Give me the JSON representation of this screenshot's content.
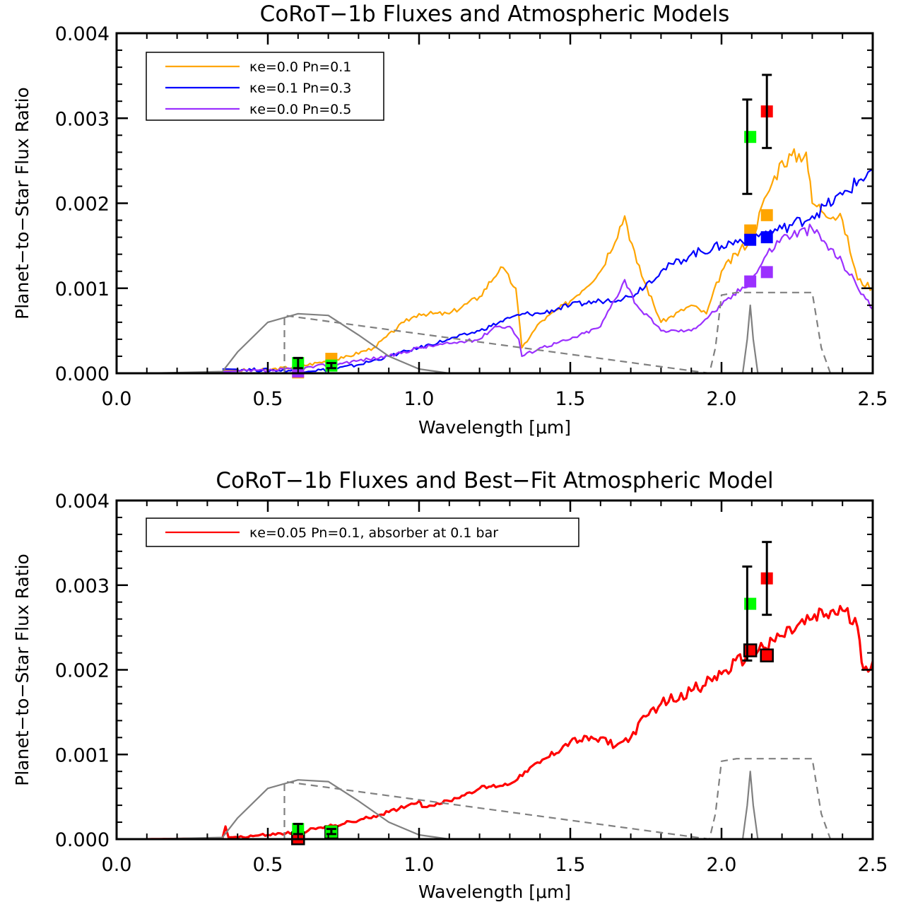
{
  "chart_data": [
    {
      "type": "line",
      "title": "CoRoT−1b Fluxes and Atmospheric Models",
      "xlabel": "Wavelength [μm]",
      "ylabel": "Planet−to−Star Flux Ratio",
      "xlim": [
        0.0,
        2.5
      ],
      "ylim": [
        0.0,
        0.004
      ],
      "x_tick_labels": [
        "0.0",
        "0.5",
        "1.0",
        "1.5",
        "2.0",
        "2.5"
      ],
      "y_tick_labels": [
        "0.000",
        "0.001",
        "0.002",
        "0.003",
        "0.004"
      ],
      "legend_position": "top-left",
      "series": [
        {
          "name": "κe=0.0 Pn=0.1",
          "color": "#FFA500",
          "points": [
            [
              0.35,
              3e-05
            ],
            [
              0.5,
              4e-05
            ],
            [
              0.6,
              8e-05
            ],
            [
              0.75,
              0.00018
            ],
            [
              0.85,
              0.0003
            ],
            [
              0.95,
              0.0006
            ],
            [
              1.0,
              0.0007
            ],
            [
              1.1,
              0.0007
            ],
            [
              1.2,
              0.0009
            ],
            [
              1.27,
              0.00125
            ],
            [
              1.32,
              0.001
            ],
            [
              1.34,
              0.0003
            ],
            [
              1.4,
              0.0006
            ],
            [
              1.5,
              0.00085
            ],
            [
              1.6,
              0.0012
            ],
            [
              1.68,
              0.00185
            ],
            [
              1.72,
              0.0013
            ],
            [
              1.8,
              0.0006
            ],
            [
              1.9,
              0.0008
            ],
            [
              1.95,
              0.0007
            ],
            [
              2.0,
              0.0012
            ],
            [
              2.1,
              0.0016
            ],
            [
              2.15,
              0.0021
            ],
            [
              2.2,
              0.0025
            ],
            [
              2.28,
              0.0026
            ],
            [
              2.3,
              0.002
            ],
            [
              2.4,
              0.0018
            ],
            [
              2.45,
              0.0011
            ],
            [
              2.5,
              0.001
            ]
          ]
        },
        {
          "name": "κe=0.1 Pn=0.3",
          "color": "#0000FF",
          "points": [
            [
              0.35,
              5e-05
            ],
            [
              0.6,
              3e-05
            ],
            [
              0.7,
              4e-05
            ],
            [
              0.8,
              0.0001
            ],
            [
              0.9,
              0.0002
            ],
            [
              1.0,
              0.0003
            ],
            [
              1.1,
              0.0004
            ],
            [
              1.2,
              0.0005
            ],
            [
              1.3,
              0.00065
            ],
            [
              1.35,
              0.0007
            ],
            [
              1.4,
              0.0007
            ],
            [
              1.5,
              0.0008
            ],
            [
              1.6,
              0.00085
            ],
            [
              1.7,
              0.0009
            ],
            [
              1.8,
              0.0012
            ],
            [
              1.9,
              0.0014
            ],
            [
              2.0,
              0.0015
            ],
            [
              2.1,
              0.0016
            ],
            [
              2.2,
              0.0017
            ],
            [
              2.3,
              0.00185
            ],
            [
              2.4,
              0.0021
            ],
            [
              2.5,
              0.0024
            ]
          ]
        },
        {
          "name": "κe=0.0 Pn=0.5",
          "color": "#9B30FF",
          "points": [
            [
              0.35,
              2e-05
            ],
            [
              0.5,
              3e-05
            ],
            [
              0.6,
              5e-05
            ],
            [
              0.7,
              0.0001
            ],
            [
              0.8,
              0.00015
            ],
            [
              0.9,
              0.0002
            ],
            [
              1.0,
              0.0003
            ],
            [
              1.1,
              0.00035
            ],
            [
              1.2,
              0.0004
            ],
            [
              1.25,
              0.00055
            ],
            [
              1.3,
              0.00055
            ],
            [
              1.33,
              0.0004
            ],
            [
              1.34,
              0.0002
            ],
            [
              1.4,
              0.0003
            ],
            [
              1.5,
              0.0004
            ],
            [
              1.6,
              0.00055
            ],
            [
              1.68,
              0.0011
            ],
            [
              1.72,
              0.0008
            ],
            [
              1.8,
              0.0005
            ],
            [
              1.9,
              0.0005
            ],
            [
              2.0,
              0.0008
            ],
            [
              2.1,
              0.0011
            ],
            [
              2.15,
              0.0014
            ],
            [
              2.2,
              0.0016
            ],
            [
              2.3,
              0.0017
            ],
            [
              2.4,
              0.0013
            ],
            [
              2.5,
              0.00075
            ]
          ]
        },
        {
          "color": "#808080",
          "style": "solid",
          "points": [
            [
              0.1,
              0.0
            ],
            [
              0.35,
              2e-05
            ],
            [
              0.4,
              0.00025
            ],
            [
              0.5,
              0.0006
            ],
            [
              0.6,
              0.0007
            ],
            [
              0.7,
              0.00068
            ],
            [
              0.8,
              0.00045
            ],
            [
              0.9,
              0.0002
            ],
            [
              1.0,
              5e-05
            ],
            [
              1.1,
              0.0
            ],
            [
              2.07,
              0.0
            ],
            [
              2.085,
              0.0004
            ],
            [
              2.095,
              0.0008
            ],
            [
              2.105,
              0.0004
            ],
            [
              2.12,
              0.0
            ],
            [
              2.5,
              0.0
            ]
          ]
        },
        {
          "color": "#808080",
          "style": "dashed",
          "points": [
            [
              0.555,
              0.0
            ],
            [
              0.555,
              0.00068
            ],
            [
              1.96,
              0.0
            ],
            [
              1.98,
              0.0003
            ],
            [
              2.0,
              0.00092
            ],
            [
              2.05,
              0.00095
            ],
            [
              2.3,
              0.00095
            ],
            [
              2.33,
              0.0003
            ],
            [
              2.36,
              0.0
            ]
          ]
        }
      ],
      "observations": [
        {
          "x": 0.6,
          "y": 0.00012,
          "err": 6e-05,
          "color": "#00FF00"
        },
        {
          "x": 0.71,
          "y": 9e-05,
          "err": 3e-05,
          "color": "#00FF00"
        },
        {
          "x": 2.095,
          "y": 0.00278,
          "err_low": 0.00067,
          "err_high": 0.00044,
          "color": "#00FF00",
          "error_x_offset": -0.01
        },
        {
          "x": 2.15,
          "y": 0.00308,
          "err": 0.00043,
          "color": "#FF0000"
        }
      ],
      "model_points": [
        {
          "x": 0.6,
          "y": 1e-05,
          "color": "#FFA500"
        },
        {
          "x": 0.71,
          "y": 0.00017,
          "color": "#FFA500"
        },
        {
          "x": 2.095,
          "y": 0.00168,
          "color": "#FFA500"
        },
        {
          "x": 2.15,
          "y": 0.00186,
          "color": "#FFA500"
        },
        {
          "x": 2.095,
          "y": 0.00157,
          "color": "#0000FF"
        },
        {
          "x": 2.15,
          "y": 0.0016,
          "color": "#0000FF"
        },
        {
          "x": 0.6,
          "y": 2e-05,
          "color": "#9B30FF"
        },
        {
          "x": 2.095,
          "y": 0.00108,
          "color": "#9B30FF"
        },
        {
          "x": 2.15,
          "y": 0.00119,
          "color": "#9B30FF"
        }
      ]
    },
    {
      "type": "line",
      "title": "CoRoT−1b Fluxes and Best−Fit Atmospheric Model",
      "xlabel": "Wavelength [μm]",
      "ylabel": "Planet−to−Star Flux Ratio",
      "xlim": [
        0.0,
        2.5
      ],
      "ylim": [
        0.0,
        0.004
      ],
      "x_tick_labels": [
        "0.0",
        "0.5",
        "1.0",
        "1.5",
        "2.0",
        "2.5"
      ],
      "y_tick_labels": [
        "0.000",
        "0.001",
        "0.002",
        "0.003",
        "0.004"
      ],
      "legend_position": "top-left",
      "series": [
        {
          "name": "κe=0.05 Pn=0.1, absorber at 0.1 bar",
          "color": "#FF0000",
          "points": [
            [
              0.1,
              0.0
            ],
            [
              0.35,
              1e-05
            ],
            [
              0.36,
              0.00015
            ],
            [
              0.37,
              2e-05
            ],
            [
              0.5,
              5e-05
            ],
            [
              0.6,
              8e-05
            ],
            [
              0.7,
              0.00015
            ],
            [
              0.8,
              0.00022
            ],
            [
              0.9,
              0.00032
            ],
            [
              1.0,
              0.00045
            ],
            [
              1.01,
              0.00038
            ],
            [
              1.1,
              0.00045
            ],
            [
              1.2,
              0.0006
            ],
            [
              1.3,
              0.00065
            ],
            [
              1.35,
              0.0008
            ],
            [
              1.4,
              0.0009
            ],
            [
              1.5,
              0.00115
            ],
            [
              1.6,
              0.0012
            ],
            [
              1.65,
              0.0011
            ],
            [
              1.7,
              0.0012
            ],
            [
              1.75,
              0.00145
            ],
            [
              1.8,
              0.0016
            ],
            [
              1.9,
              0.00175
            ],
            [
              2.0,
              0.00195
            ],
            [
              2.1,
              0.0022
            ],
            [
              2.2,
              0.0024
            ],
            [
              2.3,
              0.0026
            ],
            [
              2.4,
              0.0027
            ],
            [
              2.45,
              0.0025
            ],
            [
              2.47,
              0.002
            ],
            [
              2.5,
              0.0021
            ]
          ]
        },
        {
          "color": "#808080",
          "style": "solid",
          "points": [
            [
              0.1,
              0.0
            ],
            [
              0.35,
              2e-05
            ],
            [
              0.4,
              0.00025
            ],
            [
              0.5,
              0.0006
            ],
            [
              0.6,
              0.0007
            ],
            [
              0.7,
              0.00068
            ],
            [
              0.8,
              0.00045
            ],
            [
              0.9,
              0.0002
            ],
            [
              1.0,
              5e-05
            ],
            [
              1.1,
              0.0
            ],
            [
              2.07,
              0.0
            ],
            [
              2.085,
              0.0004
            ],
            [
              2.095,
              0.0008
            ],
            [
              2.105,
              0.0004
            ],
            [
              2.12,
              0.0
            ],
            [
              2.5,
              0.0
            ]
          ]
        },
        {
          "color": "#808080",
          "style": "dashed",
          "points": [
            [
              0.555,
              0.0
            ],
            [
              0.555,
              0.00068
            ],
            [
              1.96,
              0.0
            ],
            [
              1.98,
              0.0003
            ],
            [
              2.0,
              0.00092
            ],
            [
              2.05,
              0.00095
            ],
            [
              2.3,
              0.00095
            ],
            [
              2.33,
              0.0003
            ],
            [
              2.36,
              0.0
            ]
          ]
        }
      ],
      "observations": [
        {
          "x": 0.6,
          "y": 0.00012,
          "err": 6e-05,
          "color": "#00FF00"
        },
        {
          "x": 0.71,
          "y": 9e-05,
          "err": 3e-05,
          "color": "#00FF00"
        },
        {
          "x": 2.095,
          "y": 0.00278,
          "err_low": 0.00067,
          "err_high": 0.00044,
          "color": "#00FF00",
          "error_x_offset": -0.01
        },
        {
          "x": 2.15,
          "y": 0.00308,
          "err": 0.00043,
          "color": "#FF0000"
        }
      ],
      "model_points": [
        {
          "x": 0.6,
          "y": 1e-05,
          "color": "#FF0000",
          "outlined": true
        },
        {
          "x": 0.71,
          "y": 8e-05,
          "color": "#FF0000",
          "outlined": true
        },
        {
          "x": 2.095,
          "y": 0.00223,
          "color": "#FF0000",
          "outlined": true
        },
        {
          "x": 2.15,
          "y": 0.00217,
          "color": "#FF0000",
          "outlined": true
        }
      ]
    }
  ]
}
